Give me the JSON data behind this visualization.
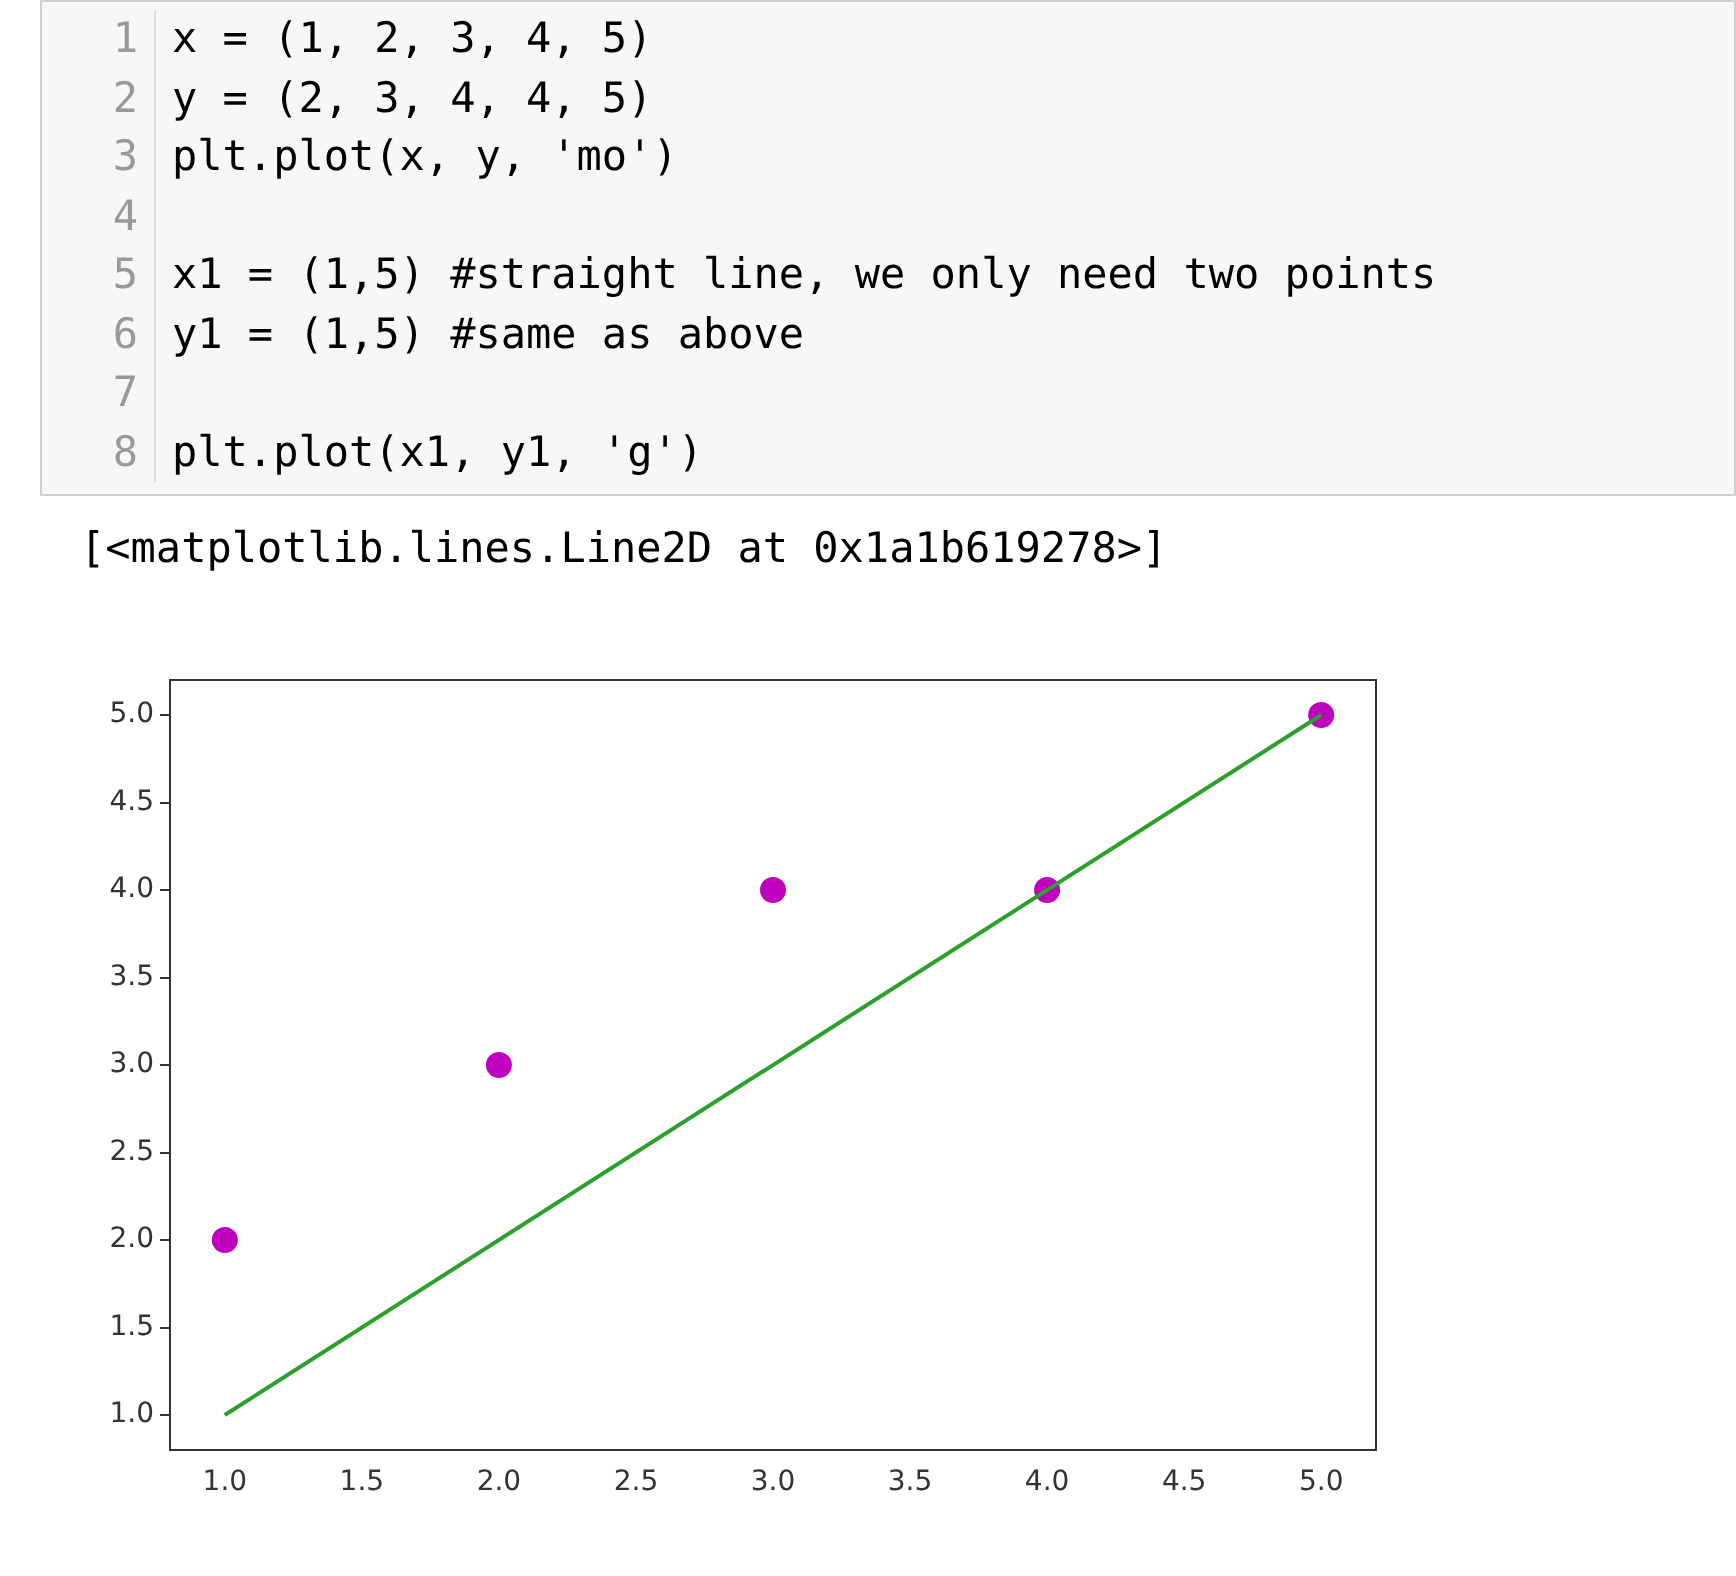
{
  "chart_data": {
    "type": "scatter",
    "annotations": [
      "1  x = (1, 2, 3, 4, 5)",
      "2  y = (2, 3, 4, 4, 5)",
      "3  plt.plot(x, y, 'mo')",
      "4",
      "5  x1 = (1,5) #straight line, we only need two points",
      "6  y1 = (1,5) #same as above",
      "7",
      "8  plt.plot(x1, y1, 'g')",
      "[<matplotlib.lines.Line2D at 0x1a1b619278>]"
    ],
    "series": [
      {
        "type": "scatter",
        "color": "#bf00bf",
        "marker": "circle",
        "x": [
          1,
          2,
          3,
          4,
          5
        ],
        "values": [
          2,
          3,
          4,
          4,
          5
        ]
      },
      {
        "type": "line",
        "color": "#2ca02c",
        "marker": "none",
        "line_style": "solid",
        "x": [
          1,
          5
        ],
        "values": [
          1,
          5
        ]
      }
    ],
    "xlim": [
      0.8,
      5.2
    ],
    "ylim": [
      0.8,
      5.2
    ],
    "xticks": [
      {
        "value": 1,
        "label": "1.0"
      },
      1.5,
      {
        "value": 2,
        "label": "2.0"
      },
      2.5,
      {
        "value": 3,
        "label": "3.0"
      },
      3.5,
      {
        "value": 4,
        "label": "4.0"
      },
      4.5,
      {
        "value": 5,
        "label": "5.0"
      }
    ],
    "yticks": [
      {
        "value": 1,
        "label": "1.0"
      },
      1.5,
      {
        "value": 2,
        "label": "2.0"
      },
      2.5,
      {
        "value": 3,
        "label": "3.0"
      },
      3.5,
      {
        "value": 4,
        "label": "4.0"
      },
      4.5,
      {
        "value": 5,
        "label": "5.0"
      }
    ],
    "grid": false,
    "legend": false
  }
}
